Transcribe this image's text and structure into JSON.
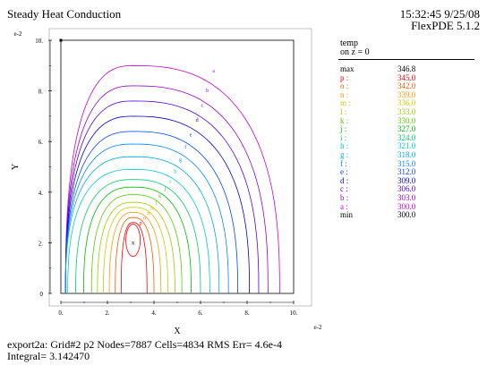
{
  "header": {
    "title": "Steady Heat Conduction",
    "timestamp": "15:32:45 9/25/08",
    "version": "FlexPDE 5.1.2"
  },
  "legend": {
    "title": "temp",
    "subtitle": "on z = 0",
    "entries": [
      {
        "key": "max",
        "value": "346.8",
        "color": "#000000"
      },
      {
        "key": "p :",
        "value": "345.0",
        "color": "#ff0000"
      },
      {
        "key": "o :",
        "value": "342.0",
        "color": "#ff5500"
      },
      {
        "key": "n :",
        "value": "339.0",
        "color": "#ff9900"
      },
      {
        "key": "m :",
        "value": "336.0",
        "color": "#cccc00"
      },
      {
        "key": "l :",
        "value": "333.0",
        "color": "#99cc00"
      },
      {
        "key": "k :",
        "value": "330.0",
        "color": "#55cc00"
      },
      {
        "key": "j :",
        "value": "327.0",
        "color": "#00bb00"
      },
      {
        "key": "i :",
        "value": "324.0",
        "color": "#00cc66"
      },
      {
        "key": "h :",
        "value": "321.0",
        "color": "#00cccc"
      },
      {
        "key": "g :",
        "value": "318.0",
        "color": "#00aadd"
      },
      {
        "key": "f :",
        "value": "315.0",
        "color": "#0088ff"
      },
      {
        "key": "e :",
        "value": "312.0",
        "color": "#0044ff"
      },
      {
        "key": "d :",
        "value": "309.0",
        "color": "#0000dd"
      },
      {
        "key": "c :",
        "value": "306.0",
        "color": "#5500dd"
      },
      {
        "key": "b :",
        "value": "303.0",
        "color": "#9900cc"
      },
      {
        "key": "a :",
        "value": "300.0",
        "color": "#cc00cc"
      },
      {
        "key": "min",
        "value": "300.0",
        "color": "#000000"
      }
    ]
  },
  "footer": {
    "line1": "export2a:  Grid#2  p2  Nodes=7887 Cells=4834 RMS Err= 4.6e-4",
    "line2": "Integral=  3.142470"
  },
  "chart_data": {
    "type": "contour",
    "xlabel": "X",
    "ylabel": "Y",
    "x_exponent": "e-2",
    "y_exponent": "e-2",
    "xlim": [
      0,
      10
    ],
    "ylim": [
      0,
      10
    ],
    "xticks": [
      "0.",
      "2.",
      "4.",
      "6.",
      "8.",
      "10."
    ],
    "yticks": [
      "0",
      "2.",
      "4.",
      "6.",
      "8.",
      "10."
    ],
    "max_point": {
      "x": 3.1,
      "y": 2.0,
      "label": "x"
    },
    "levels": [
      {
        "label": "a",
        "value": 300.0,
        "color": "#cc00cc",
        "x_extent": 9.4,
        "y_extent": 9.0
      },
      {
        "label": "b",
        "value": 303.0,
        "color": "#9900cc",
        "x_extent": 8.9,
        "y_extent": 8.2
      },
      {
        "label": "c",
        "value": 306.0,
        "color": "#5500dd",
        "x_extent": 8.5,
        "y_extent": 7.6
      },
      {
        "label": "d",
        "value": 309.0,
        "color": "#0000dd",
        "x_extent": 8.1,
        "y_extent": 7.0
      },
      {
        "label": "e",
        "value": 312.0,
        "color": "#0044ff",
        "x_extent": 7.6,
        "y_extent": 6.4
      },
      {
        "label": "f",
        "value": 315.0,
        "color": "#0088ff",
        "x_extent": 7.2,
        "y_extent": 5.9
      },
      {
        "label": "g",
        "value": 318.0,
        "color": "#00aadd",
        "x_extent": 6.8,
        "y_extent": 5.4
      },
      {
        "label": "h",
        "value": 321.0,
        "color": "#00cccc",
        "x_extent": 6.4,
        "y_extent": 4.9
      },
      {
        "label": "i",
        "value": 324.0,
        "color": "#00cc66",
        "x_extent": 6.0,
        "y_extent": 4.5
      },
      {
        "label": "j",
        "value": 327.0,
        "color": "#00bb00",
        "x_extent": 5.6,
        "y_extent": 4.2
      },
      {
        "label": "k",
        "value": 330.0,
        "color": "#55cc00",
        "x_extent": 5.2,
        "y_extent": 3.9
      },
      {
        "label": "l",
        "value": 333.0,
        "color": "#99cc00",
        "x_extent": 4.9,
        "y_extent": 3.6
      },
      {
        "label": "m",
        "value": 336.0,
        "color": "#cccc00",
        "x_extent": 4.6,
        "y_extent": 3.4
      },
      {
        "label": "n",
        "value": 339.0,
        "color": "#ff9900",
        "x_extent": 4.3,
        "y_extent": 3.2
      },
      {
        "label": "o",
        "value": 342.0,
        "color": "#ff5500",
        "x_extent": 4.0,
        "y_extent": 3.0
      },
      {
        "label": "p",
        "value": 345.0,
        "color": "#ff0000",
        "x_extent": 3.7,
        "y_extent": 2.8
      }
    ]
  }
}
